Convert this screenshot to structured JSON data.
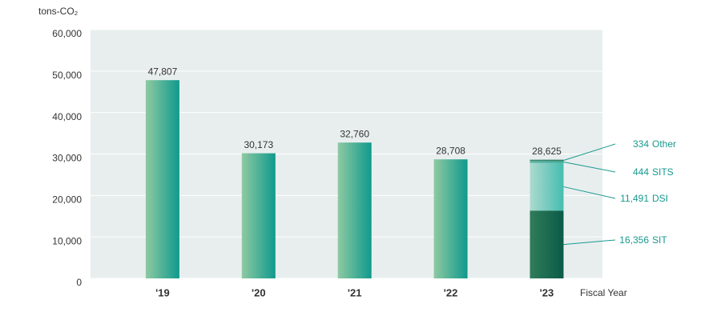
{
  "chart_data": {
    "type": "bar",
    "y_label": "tons-CO₂",
    "x_label": "Fiscal Year",
    "categories": [
      "'19",
      "'20",
      "'21",
      "'22",
      "'23"
    ],
    "values": [
      47807,
      30173,
      32760,
      28708,
      28625
    ],
    "value_labels": [
      "47,807",
      "30,173",
      "32,760",
      "28,708",
      "28,625"
    ],
    "colors": [
      "#8fc9a3",
      "#0f9a8c"
    ],
    "breakdown": [
      {
        "name": "SIT",
        "value": 16356,
        "value_label": "16,356",
        "colors": [
          "#2f7d5a",
          "#0b5a48"
        ]
      },
      {
        "name": "DSI",
        "value": 11491,
        "value_label": "11,491",
        "colors": [
          "#acdacf",
          "#45bdaf"
        ]
      },
      {
        "name": "SITS",
        "value": 444,
        "value_label": "444",
        "colors": [
          "#5fb5a5",
          "#3aa898"
        ]
      },
      {
        "name": "Other",
        "value": 334,
        "value_label": "334",
        "colors": [
          "#3f8e72",
          "#2e7e62"
        ]
      }
    ],
    "ylim": [
      0,
      60000
    ],
    "yticks": [
      0,
      {
        "value": 10000,
        "label": "10,000"
      },
      {
        "value": 20000,
        "label": "20,000"
      },
      {
        "value": 30000,
        "label": "30,000"
      },
      {
        "value": 40000,
        "label": "40,000"
      },
      {
        "value": 50000,
        "label": "50,000"
      },
      {
        "value": 60000,
        "label": "60,000"
      }
    ],
    "grid": true
  }
}
